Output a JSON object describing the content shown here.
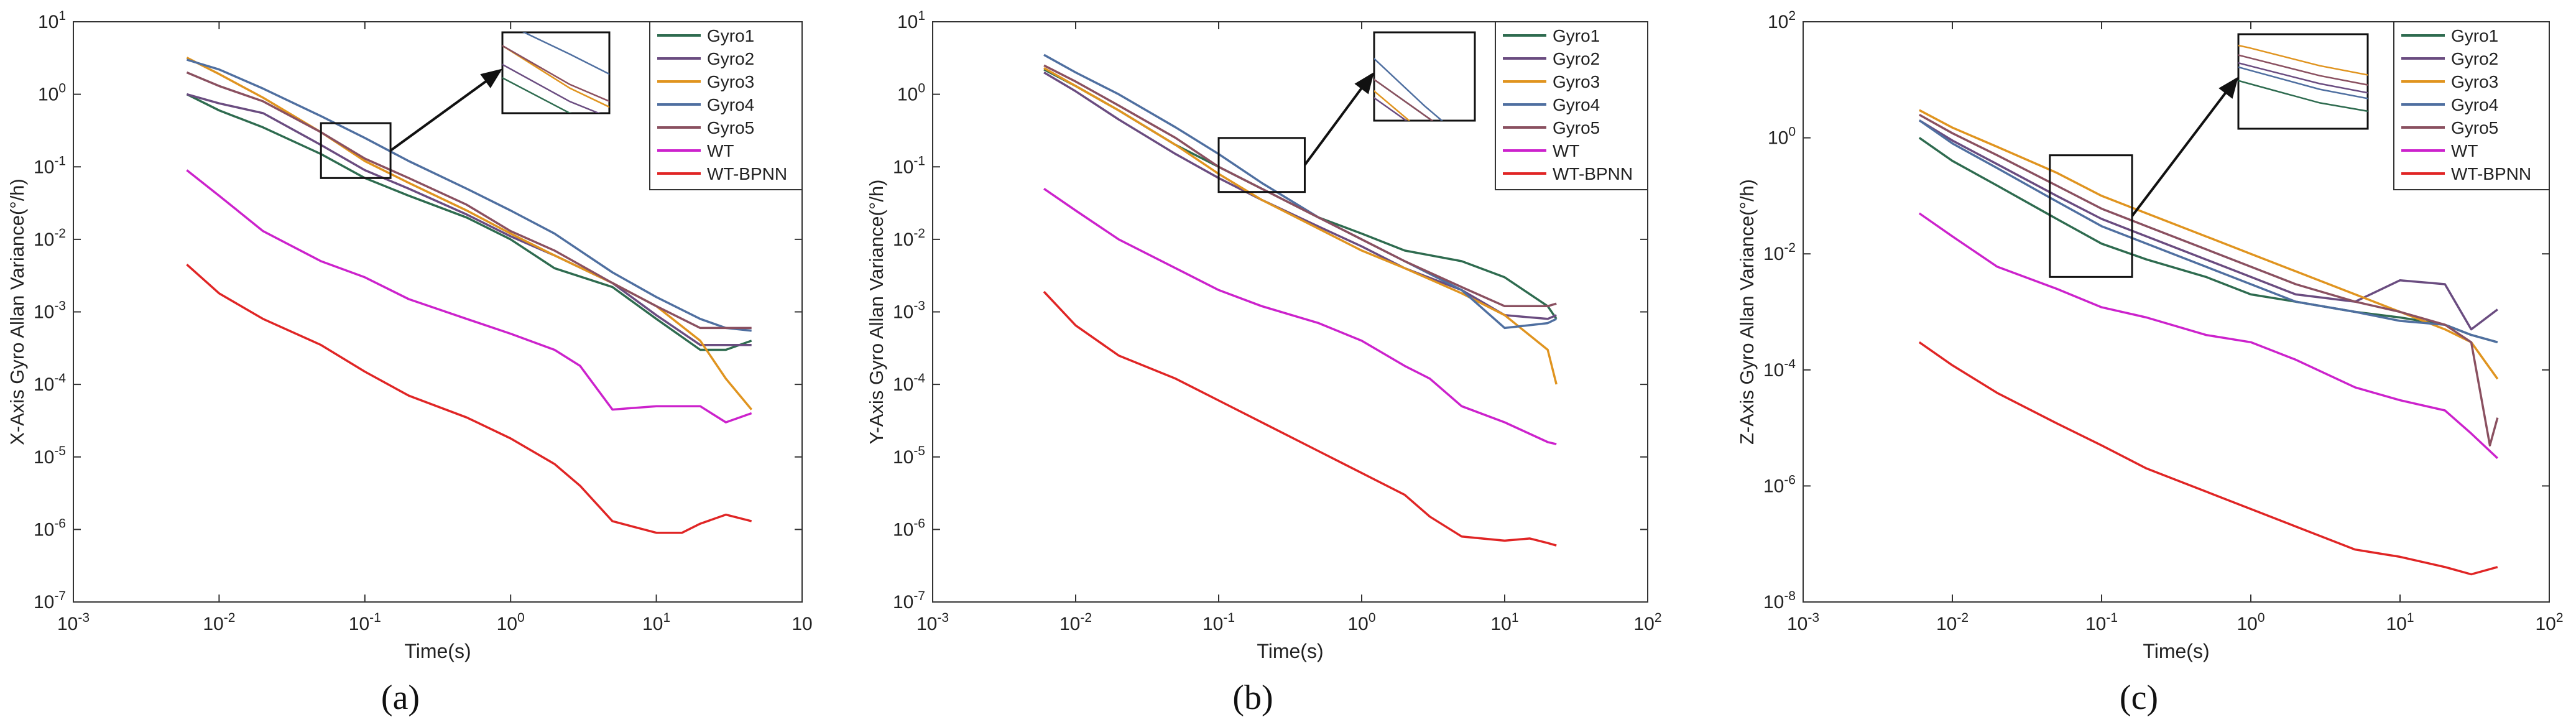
{
  "colors": {
    "Gyro1": "#2e6b4f",
    "Gyro2": "#6a4c80",
    "Gyro3": "#e0941f",
    "Gyro4": "#4f6fa0",
    "Gyro5": "#8a5060",
    "WT": "#cc22cc",
    "WT-BPNN": "#e02525"
  },
  "chart_data": [
    {
      "type": "line",
      "scale": "log-log",
      "sublabel": "(a)",
      "xlabel": "Time(s)",
      "ylabel": "X-Axis Gyro Allan Variance(°/h)",
      "xlim": [
        0.001,
        100
      ],
      "ylim": [
        1e-07,
        10
      ],
      "xticks": [
        "10-3",
        "10-2",
        "10-1",
        "100",
        "101",
        "10"
      ],
      "yticks": [
        "10-7",
        "10-6",
        "10-5",
        "10-4",
        "10-3",
        "10-2",
        "10-1",
        "100",
        "101"
      ],
      "legend": [
        "Gyro1",
        "Gyro2",
        "Gyro3",
        "Gyro4",
        "Gyro5",
        "WT",
        "WT-BPNN"
      ],
      "zoom_box": {
        "x": [
          0.05,
          0.15
        ],
        "y": [
          0.07,
          0.4
        ]
      },
      "series": [
        {
          "name": "Gyro1",
          "x": [
            0.006,
            0.01,
            0.02,
            0.05,
            0.1,
            0.2,
            0.5,
            1,
            2,
            5,
            10,
            20,
            30,
            45
          ],
          "y": [
            1.0,
            0.6,
            0.35,
            0.15,
            0.07,
            0.04,
            0.02,
            0.01,
            0.004,
            0.0022,
            0.0008,
            0.0003,
            0.0003,
            0.0004
          ]
        },
        {
          "name": "Gyro2",
          "x": [
            0.006,
            0.01,
            0.02,
            0.05,
            0.1,
            0.2,
            0.5,
            1,
            2,
            5,
            10,
            20,
            30,
            45
          ],
          "y": [
            1.0,
            0.75,
            0.55,
            0.2,
            0.09,
            0.05,
            0.022,
            0.011,
            0.006,
            0.0025,
            0.0009,
            0.00035,
            0.00035,
            0.00035
          ]
        },
        {
          "name": "Gyro3",
          "x": [
            0.006,
            0.01,
            0.02,
            0.05,
            0.1,
            0.2,
            0.5,
            1,
            2,
            5,
            10,
            20,
            30,
            45
          ],
          "y": [
            3.2,
            1.9,
            0.9,
            0.3,
            0.12,
            0.06,
            0.025,
            0.012,
            0.006,
            0.0025,
            0.0012,
            0.0004,
            0.00012,
            4.5e-05
          ]
        },
        {
          "name": "Gyro4",
          "x": [
            0.006,
            0.01,
            0.02,
            0.05,
            0.1,
            0.2,
            0.5,
            1,
            2,
            5,
            10,
            20,
            30,
            45
          ],
          "y": [
            3.0,
            2.2,
            1.2,
            0.5,
            0.25,
            0.12,
            0.05,
            0.025,
            0.012,
            0.0035,
            0.0016,
            0.0008,
            0.0006,
            0.00055
          ]
        },
        {
          "name": "Gyro5",
          "x": [
            0.006,
            0.01,
            0.02,
            0.05,
            0.1,
            0.2,
            0.5,
            1,
            2,
            5,
            10,
            20,
            30,
            45
          ],
          "y": [
            2.0,
            1.3,
            0.8,
            0.3,
            0.13,
            0.07,
            0.03,
            0.013,
            0.007,
            0.0025,
            0.0012,
            0.0006,
            0.0006,
            0.0006
          ]
        },
        {
          "name": "WT",
          "x": [
            0.006,
            0.01,
            0.02,
            0.05,
            0.1,
            0.2,
            0.5,
            1,
            2,
            3,
            5,
            10,
            20,
            30,
            45
          ],
          "y": [
            0.09,
            0.04,
            0.013,
            0.005,
            0.003,
            0.0015,
            0.0008,
            0.0005,
            0.0003,
            0.00018,
            4.5e-05,
            5e-05,
            5e-05,
            3e-05,
            4e-05
          ]
        },
        {
          "name": "WT-BPNN",
          "x": [
            0.006,
            0.01,
            0.02,
            0.05,
            0.1,
            0.2,
            0.5,
            1,
            2,
            3,
            5,
            10,
            15,
            20,
            30,
            45
          ],
          "y": [
            0.0045,
            0.0018,
            0.0008,
            0.00035,
            0.00015,
            7e-05,
            3.5e-05,
            1.8e-05,
            8e-06,
            4e-06,
            1.3e-06,
            9e-07,
            9e-07,
            1.2e-06,
            1.6e-06,
            1.3e-06
          ]
        }
      ]
    },
    {
      "type": "line",
      "scale": "log-log",
      "sublabel": "(b)",
      "xlabel": "Time(s)",
      "ylabel": "Y-Axis Gyro Allan Variance(°/h)",
      "xlim": [
        0.001,
        100
      ],
      "ylim": [
        1e-07,
        10
      ],
      "xticks": [
        "10-3",
        "10-2",
        "10-1",
        "100",
        "101",
        "102"
      ],
      "yticks": [
        "10-7",
        "10-6",
        "10-5",
        "10-4",
        "10-3",
        "10-2",
        "10-1",
        "100",
        "101"
      ],
      "legend": [
        "Gyro1",
        "Gyro2",
        "Gyro3",
        "Gyro4",
        "Gyro5",
        "WT",
        "WT-BPNN"
      ],
      "zoom_box": {
        "x": [
          0.1,
          0.4
        ],
        "y": [
          0.045,
          0.25
        ]
      },
      "series": [
        {
          "name": "Gyro1",
          "x": [
            0.006,
            0.01,
            0.02,
            0.05,
            0.1,
            0.2,
            0.5,
            1,
            2,
            5,
            10,
            20,
            23
          ],
          "y": [
            2.2,
            1.3,
            0.6,
            0.2,
            0.1,
            0.05,
            0.02,
            0.012,
            0.007,
            0.005,
            0.003,
            0.0012,
            0.0008
          ]
        },
        {
          "name": "Gyro2",
          "x": [
            0.006,
            0.01,
            0.02,
            0.05,
            0.1,
            0.2,
            0.5,
            1,
            2,
            5,
            10,
            20,
            23
          ],
          "y": [
            2.0,
            1.1,
            0.45,
            0.15,
            0.07,
            0.035,
            0.015,
            0.008,
            0.004,
            0.002,
            0.0009,
            0.0008,
            0.0009
          ]
        },
        {
          "name": "Gyro3",
          "x": [
            0.006,
            0.01,
            0.02,
            0.05,
            0.1,
            0.2,
            0.5,
            1,
            2,
            5,
            10,
            20,
            23
          ],
          "y": [
            2.3,
            1.3,
            0.6,
            0.2,
            0.08,
            0.035,
            0.014,
            0.007,
            0.004,
            0.0018,
            0.0009,
            0.0003,
            0.0001
          ]
        },
        {
          "name": "Gyro4",
          "x": [
            0.006,
            0.01,
            0.02,
            0.05,
            0.1,
            0.2,
            0.5,
            1,
            2,
            5,
            10,
            20,
            23
          ],
          "y": [
            3.5,
            2.0,
            1.0,
            0.35,
            0.15,
            0.06,
            0.02,
            0.01,
            0.005,
            0.002,
            0.0006,
            0.0007,
            0.0008
          ]
        },
        {
          "name": "Gyro5",
          "x": [
            0.006,
            0.01,
            0.02,
            0.05,
            0.1,
            0.2,
            0.5,
            1,
            2,
            5,
            10,
            20,
            23
          ],
          "y": [
            2.5,
            1.5,
            0.7,
            0.25,
            0.1,
            0.05,
            0.02,
            0.01,
            0.005,
            0.0022,
            0.0012,
            0.0012,
            0.0013
          ]
        },
        {
          "name": "WT",
          "x": [
            0.006,
            0.01,
            0.02,
            0.05,
            0.1,
            0.2,
            0.5,
            1,
            2,
            3,
            5,
            10,
            20,
            23
          ],
          "y": [
            0.05,
            0.025,
            0.01,
            0.004,
            0.002,
            0.0012,
            0.0007,
            0.0004,
            0.00018,
            0.00012,
            5e-05,
            3e-05,
            1.6e-05,
            1.5e-05
          ]
        },
        {
          "name": "WT-BPNN",
          "x": [
            0.006,
            0.01,
            0.02,
            0.05,
            0.1,
            0.2,
            0.5,
            1,
            2,
            3,
            5,
            10,
            15,
            20,
            23
          ],
          "y": [
            0.0019,
            0.00065,
            0.00025,
            0.00012,
            6e-05,
            3e-05,
            1.2e-05,
            6e-06,
            3e-06,
            1.5e-06,
            8e-07,
            7e-07,
            7.5e-07,
            6.5e-07,
            6e-07
          ]
        }
      ]
    },
    {
      "type": "line",
      "scale": "log-log",
      "sublabel": "(c)",
      "xlabel": "Time(s)",
      "ylabel": "Z-Axis Gyro Allan Variance(°/h)",
      "xlim": [
        0.001,
        100
      ],
      "ylim": [
        1e-08,
        100
      ],
      "xticks": [
        "10-3",
        "10-2",
        "10-1",
        "100",
        "101",
        "102"
      ],
      "yticks": [
        "10-8",
        "10-6",
        "10-4",
        "10-2",
        "100",
        "102"
      ],
      "legend": [
        "Gyro1",
        "Gyro2",
        "Gyro3",
        "Gyro4",
        "Gyro5",
        "WT",
        "WT-BPNN"
      ],
      "zoom_box": {
        "x": [
          0.045,
          0.16
        ],
        "y": [
          0.004,
          0.5
        ]
      },
      "series": [
        {
          "name": "Gyro1",
          "x": [
            0.006,
            0.01,
            0.02,
            0.05,
            0.1,
            0.2,
            0.5,
            1,
            2,
            5,
            10,
            20,
            30,
            45
          ],
          "y": [
            1.0,
            0.4,
            0.15,
            0.04,
            0.015,
            0.008,
            0.004,
            0.002,
            0.0015,
            0.001,
            0.0008,
            0.0006,
            0.0004,
            0.0003
          ]
        },
        {
          "name": "Gyro2",
          "x": [
            0.006,
            0.01,
            0.02,
            0.05,
            0.1,
            0.2,
            0.5,
            1,
            2,
            5,
            10,
            20,
            30,
            45
          ],
          "y": [
            2.0,
            0.9,
            0.35,
            0.1,
            0.04,
            0.02,
            0.008,
            0.004,
            0.002,
            0.0015,
            0.0035,
            0.003,
            0.0005,
            0.0011
          ]
        },
        {
          "name": "Gyro3",
          "x": [
            0.006,
            0.01,
            0.02,
            0.05,
            0.1,
            0.2,
            0.5,
            1,
            2,
            5,
            10,
            20,
            30,
            45
          ],
          "y": [
            3.0,
            1.5,
            0.7,
            0.25,
            0.1,
            0.05,
            0.02,
            0.01,
            0.005,
            0.002,
            0.001,
            0.0005,
            0.0003,
            7e-05
          ]
        },
        {
          "name": "Gyro4",
          "x": [
            0.006,
            0.01,
            0.02,
            0.05,
            0.1,
            0.2,
            0.5,
            1,
            2,
            5,
            10,
            20,
            30,
            45
          ],
          "y": [
            2.0,
            0.8,
            0.3,
            0.08,
            0.03,
            0.015,
            0.006,
            0.003,
            0.0015,
            0.001,
            0.0007,
            0.0006,
            0.0004,
            0.0003
          ]
        },
        {
          "name": "Gyro5",
          "x": [
            0.006,
            0.01,
            0.02,
            0.05,
            0.1,
            0.2,
            0.5,
            1,
            2,
            5,
            10,
            20,
            30,
            40,
            45
          ],
          "y": [
            2.5,
            1.2,
            0.5,
            0.15,
            0.06,
            0.03,
            0.012,
            0.006,
            0.003,
            0.0015,
            0.001,
            0.0006,
            0.0003,
            5e-06,
            1.5e-05
          ]
        },
        {
          "name": "WT",
          "x": [
            0.006,
            0.01,
            0.02,
            0.05,
            0.1,
            0.2,
            0.5,
            1,
            2,
            5,
            10,
            20,
            30,
            45
          ],
          "y": [
            0.05,
            0.02,
            0.006,
            0.0025,
            0.0012,
            0.0008,
            0.0004,
            0.0003,
            0.00015,
            5e-05,
            3e-05,
            2e-05,
            8e-06,
            3e-06
          ]
        },
        {
          "name": "WT-BPNN",
          "x": [
            0.006,
            0.01,
            0.02,
            0.05,
            0.1,
            0.2,
            0.5,
            1,
            2,
            5,
            10,
            20,
            30,
            45
          ],
          "y": [
            0.0003,
            0.00012,
            4e-05,
            1.2e-05,
            5e-06,
            2e-06,
            8e-07,
            4e-07,
            2e-07,
            8e-08,
            6e-08,
            4e-08,
            3e-08,
            4e-08
          ]
        }
      ]
    }
  ]
}
